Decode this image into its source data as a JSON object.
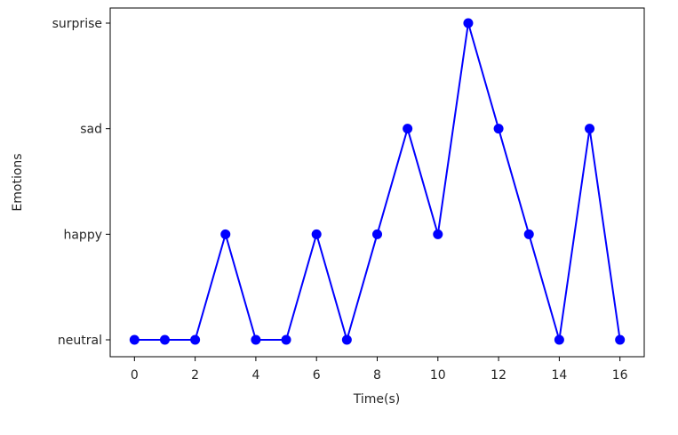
{
  "chart_data": {
    "type": "line",
    "title": "",
    "xlabel": "Time(s)",
    "ylabel": "Emotions",
    "xlim": [
      -0.8,
      16.8
    ],
    "x_ticks": [
      0,
      2,
      4,
      6,
      8,
      10,
      12,
      14,
      16
    ],
    "y_categories": [
      "neutral",
      "happy",
      "sad",
      "surprise"
    ],
    "grid": false,
    "color": "#0000ff",
    "marker": "circle",
    "series": [
      {
        "x": [
          0,
          1,
          2,
          3,
          4,
          5,
          6,
          7,
          8,
          9,
          10,
          11,
          12,
          13,
          14,
          15,
          16
        ],
        "y": [
          "neutral",
          "neutral",
          "neutral",
          "happy",
          "neutral",
          "neutral",
          "happy",
          "neutral",
          "happy",
          "sad",
          "happy",
          "surprise",
          "sad",
          "happy",
          "neutral",
          "sad",
          "neutral"
        ]
      }
    ]
  }
}
